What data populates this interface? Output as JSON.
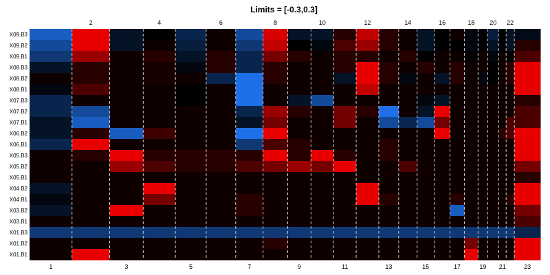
{
  "chart_data": {
    "type": "heatmap",
    "title": "Limits = [-0.3,0.3]",
    "limits": [
      -0.3,
      0.3
    ],
    "colors": {
      "low": "#1e6fe8",
      "mid": "#000000",
      "high": "#e80000",
      "separator": "#cccccc"
    },
    "rows": [
      "X09.B3",
      "X09.B2",
      "X09.B1",
      "X08.B3",
      "X08.B2",
      "X08.B1",
      "X07.B3",
      "X07.B2",
      "X07.B1",
      "X06.B2",
      "X06.B1",
      "X05.B3",
      "X05.B2",
      "X05.B1",
      "X04.B2",
      "X04.B1",
      "X03.B2",
      "X03.B1",
      "X01.B3",
      "X01.B2",
      "X01.B1"
    ],
    "columns": [
      "1",
      "2",
      "3",
      "4",
      "5",
      "6",
      "7",
      "8",
      "9",
      "10",
      "11",
      "12",
      "13",
      "14",
      "15",
      "16",
      "17",
      "18",
      "19",
      "20",
      "21",
      "22",
      "23"
    ],
    "top_ticks": [
      "2",
      "4",
      "6",
      "8",
      "10",
      "12",
      "14",
      "16",
      "18",
      "20",
      "22"
    ],
    "bottom_ticks": [
      "1",
      "3",
      "5",
      "7",
      "9",
      "11",
      "13",
      "15",
      "17",
      "19",
      "21",
      "23"
    ],
    "values": [
      [
        -0.25,
        0.3,
        -0.05,
        0.0,
        -0.1,
        0.02,
        -0.2,
        0.28,
        -0.05,
        -0.05,
        0.05,
        0.25,
        0.05,
        0.02,
        -0.05,
        0.0,
        0.02,
        -0.02,
        0.0,
        -0.08,
        0.0,
        -0.05,
        -0.03
      ],
      [
        -0.2,
        0.3,
        -0.05,
        0.02,
        -0.08,
        0.02,
        -0.15,
        0.25,
        0.0,
        -0.02,
        0.1,
        0.2,
        0.05,
        0.02,
        -0.05,
        0.0,
        0.0,
        -0.02,
        0.0,
        -0.05,
        0.0,
        -0.05,
        0.05
      ],
      [
        -0.15,
        0.2,
        0.02,
        0.05,
        -0.05,
        0.05,
        -0.1,
        0.15,
        0.05,
        0.02,
        0.05,
        0.05,
        0.02,
        0.05,
        0.0,
        0.02,
        0.02,
        0.0,
        0.02,
        -0.02,
        0.02,
        0.0,
        0.1
      ],
      [
        -0.05,
        0.05,
        0.02,
        0.03,
        -0.02,
        0.05,
        -0.1,
        0.05,
        0.02,
        0.02,
        0.05,
        0.3,
        0.05,
        0.02,
        0.05,
        0.02,
        0.05,
        0.02,
        0.02,
        0.0,
        0.02,
        0.05,
        0.3
      ],
      [
        0.02,
        0.05,
        0.02,
        0.03,
        0.02,
        -0.1,
        -0.3,
        0.05,
        0.02,
        0.02,
        -0.05,
        0.3,
        0.05,
        -0.02,
        0.02,
        -0.05,
        0.05,
        0.02,
        -0.02,
        0.0,
        0.02,
        0.05,
        0.3
      ],
      [
        -0.02,
        0.1,
        0.02,
        0.02,
        0.0,
        0.02,
        -0.3,
        0.02,
        0.02,
        0.02,
        0.02,
        0.25,
        0.02,
        0.02,
        0.02,
        0.02,
        0.02,
        0.02,
        0.02,
        0.02,
        0.02,
        0.02,
        0.3
      ],
      [
        -0.1,
        0.02,
        0.02,
        0.02,
        0.0,
        0.02,
        -0.3,
        0.02,
        -0.05,
        -0.2,
        0.02,
        0.02,
        0.02,
        0.02,
        -0.02,
        -0.05,
        0.02,
        0.02,
        0.02,
        0.02,
        0.02,
        0.02,
        0.05
      ],
      [
        -0.1,
        -0.2,
        0.02,
        0.02,
        0.02,
        0.02,
        -0.1,
        0.2,
        0.05,
        0.02,
        0.15,
        0.05,
        -0.3,
        0.02,
        -0.05,
        0.3,
        0.02,
        0.02,
        0.02,
        0.02,
        0.02,
        0.02,
        0.1
      ],
      [
        -0.05,
        -0.25,
        0.02,
        0.02,
        0.02,
        0.02,
        -0.05,
        0.15,
        0.02,
        0.02,
        0.15,
        0.02,
        -0.2,
        -0.1,
        -0.2,
        0.15,
        0.02,
        0.02,
        0.02,
        0.02,
        0.02,
        0.1,
        0.1
      ],
      [
        -0.05,
        0.05,
        -0.25,
        0.08,
        0.02,
        0.02,
        -0.3,
        0.3,
        0.02,
        0.02,
        0.02,
        0.02,
        0.02,
        0.02,
        0.02,
        0.3,
        0.02,
        0.02,
        0.02,
        0.02,
        0.05,
        0.1,
        0.3
      ],
      [
        -0.1,
        0.3,
        0.02,
        0.02,
        0.02,
        0.02,
        -0.15,
        0.1,
        0.05,
        0.02,
        0.02,
        0.02,
        0.05,
        0.02,
        0.02,
        0.02,
        0.02,
        0.02,
        0.02,
        0.02,
        0.02,
        0.02,
        0.3
      ],
      [
        0.02,
        0.05,
        0.3,
        0.05,
        0.05,
        0.05,
        0.05,
        0.3,
        0.05,
        0.3,
        0.05,
        0.02,
        0.05,
        0.02,
        0.02,
        0.02,
        0.02,
        0.02,
        0.02,
        0.02,
        0.02,
        0.02,
        0.3
      ],
      [
        0.02,
        0.02,
        0.2,
        0.1,
        0.05,
        0.05,
        0.1,
        0.15,
        0.2,
        0.15,
        0.3,
        0.02,
        0.02,
        0.1,
        0.02,
        0.02,
        0.02,
        0.02,
        0.02,
        0.02,
        0.02,
        0.02,
        0.15
      ],
      [
        0.02,
        0.02,
        0.02,
        0.02,
        0.02,
        0.02,
        0.02,
        0.02,
        0.02,
        0.02,
        0.02,
        0.02,
        0.02,
        0.02,
        0.02,
        0.02,
        0.02,
        0.02,
        0.02,
        0.02,
        0.02,
        0.02,
        0.05
      ],
      [
        -0.05,
        0.02,
        0.02,
        0.3,
        0.02,
        0.02,
        0.02,
        0.02,
        0.02,
        0.02,
        0.02,
        0.3,
        0.02,
        0.02,
        0.02,
        0.02,
        0.02,
        0.02,
        0.02,
        0.02,
        0.02,
        0.02,
        0.3
      ],
      [
        -0.02,
        0.02,
        0.02,
        0.15,
        0.02,
        0.02,
        0.05,
        0.02,
        0.02,
        0.02,
        0.02,
        0.3,
        0.05,
        0.02,
        0.02,
        0.02,
        0.05,
        0.02,
        0.02,
        0.02,
        0.02,
        0.05,
        0.3
      ],
      [
        -0.05,
        0.02,
        0.3,
        0.02,
        0.02,
        0.02,
        0.05,
        0.02,
        0.02,
        0.02,
        0.02,
        0.02,
        0.02,
        0.02,
        0.02,
        0.02,
        -0.25,
        0.02,
        0.02,
        0.02,
        0.02,
        0.02,
        0.15
      ],
      [
        0.02,
        0.02,
        0.02,
        0.02,
        0.02,
        0.02,
        0.02,
        0.02,
        0.02,
        0.02,
        0.02,
        0.02,
        0.02,
        0.02,
        0.02,
        0.02,
        0.02,
        0.02,
        0.02,
        0.02,
        0.02,
        0.02,
        0.1
      ],
      [
        -0.15,
        -0.15,
        -0.15,
        -0.15,
        -0.15,
        -0.15,
        -0.15,
        -0.15,
        -0.15,
        -0.15,
        -0.15,
        -0.15,
        -0.15,
        -0.15,
        -0.15,
        -0.15,
        -0.15,
        -0.15,
        -0.15,
        -0.15,
        -0.15,
        -0.15,
        -0.1
      ],
      [
        0.02,
        0.02,
        0.02,
        0.02,
        0.02,
        0.02,
        0.02,
        0.05,
        0.02,
        0.02,
        0.02,
        0.02,
        0.02,
        0.02,
        0.02,
        0.02,
        0.02,
        0.15,
        0.02,
        0.02,
        0.02,
        0.02,
        0.3
      ],
      [
        0.02,
        0.3,
        0.02,
        0.02,
        0.02,
        0.02,
        0.02,
        0.02,
        0.02,
        0.02,
        0.02,
        0.02,
        0.02,
        0.02,
        0.02,
        0.02,
        0.02,
        0.3,
        0.02,
        0.02,
        0.02,
        0.02,
        0.3
      ]
    ]
  }
}
